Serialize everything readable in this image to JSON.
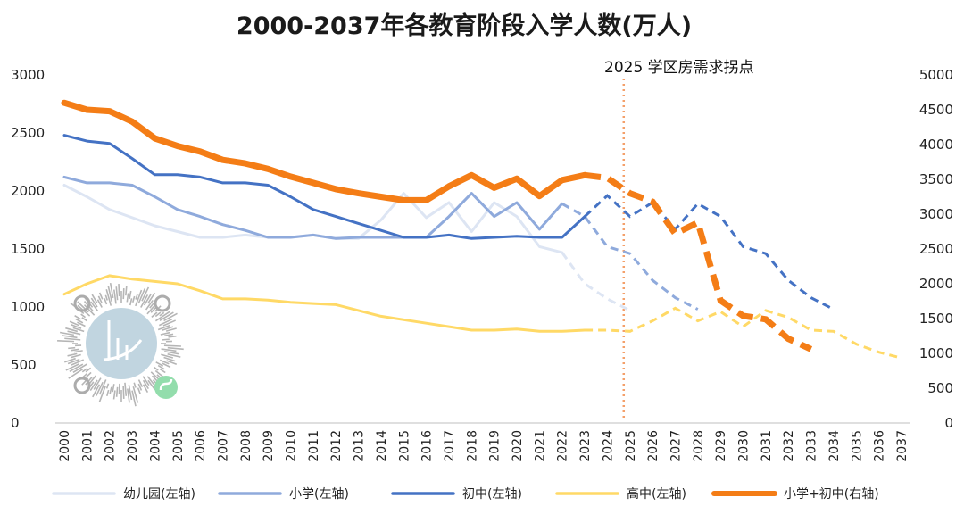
{
  "chart_data": {
    "type": "line",
    "title": "2000-2037年各教育阶段入学人数(万人)",
    "annotation": "2025 学区房需求拐点",
    "annotation_x": "2025",
    "categories": [
      "2000",
      "2001",
      "2002",
      "2003",
      "2004",
      "2005",
      "2006",
      "2007",
      "2008",
      "2009",
      "2010",
      "2011",
      "2012",
      "2013",
      "2014",
      "2015",
      "2016",
      "2017",
      "2018",
      "2019",
      "2020",
      "2021",
      "2022",
      "2023",
      "2024",
      "2025",
      "2026",
      "2027",
      "2028",
      "2029",
      "2030",
      "2031",
      "2032",
      "2033",
      "2034",
      "2035",
      "2036",
      "2037"
    ],
    "y_left": {
      "min": 0,
      "max": 3000,
      "ticks": [
        "0",
        "500",
        "1000",
        "1500",
        "2000",
        "2500",
        "3000"
      ]
    },
    "y_right": {
      "min": 0,
      "max": 5000,
      "ticks": [
        "0",
        "500",
        "1000",
        "1500",
        "2000",
        "2500",
        "3000",
        "3500",
        "4000",
        "4500",
        "5000"
      ]
    },
    "series": [
      {
        "name": "幼儿园(左轴)",
        "axis": "left",
        "color": "#dde5f3",
        "width": 3,
        "values": [
          2050,
          1950,
          1840,
          1770,
          1700,
          1650,
          1600,
          1600,
          1620,
          1600,
          1600,
          1620,
          1590,
          1590,
          1750,
          1980,
          1770,
          1900,
          1650,
          1900,
          1780,
          1520,
          1470,
          1200,
          1070,
          970,
          null,
          null,
          null,
          null,
          null,
          null,
          null,
          null,
          null,
          null,
          null,
          null
        ],
        "forecast_from": "2022"
      },
      {
        "name": "小学(左轴)",
        "axis": "left",
        "color": "#8faadc",
        "width": 3,
        "values": [
          2120,
          2070,
          2070,
          2050,
          1950,
          1840,
          1780,
          1710,
          1660,
          1600,
          1600,
          1620,
          1590,
          1600,
          1600,
          1600,
          1600,
          1780,
          1980,
          1780,
          1900,
          1670,
          1890,
          1780,
          1520,
          1460,
          1230,
          1080,
          980,
          null,
          null,
          null,
          null,
          null,
          null,
          null,
          null,
          null
        ],
        "forecast_from": "2022"
      },
      {
        "name": "初中(左轴)",
        "axis": "left",
        "color": "#4472c4",
        "width": 3,
        "values": [
          2480,
          2430,
          2410,
          2280,
          2140,
          2140,
          2120,
          2070,
          2070,
          2050,
          1950,
          1840,
          1780,
          1720,
          1660,
          1600,
          1600,
          1620,
          1590,
          1600,
          1610,
          1600,
          1600,
          1780,
          1960,
          1780,
          1900,
          1670,
          1890,
          1780,
          1520,
          1460,
          1230,
          1080,
          980,
          null,
          null,
          null
        ],
        "forecast_from": "2023"
      },
      {
        "name": "高中(左轴)",
        "axis": "left",
        "color": "#ffd966",
        "width": 3,
        "values": [
          1110,
          1200,
          1270,
          1240,
          1220,
          1200,
          1140,
          1070,
          1070,
          1060,
          1040,
          1030,
          1020,
          970,
          920,
          890,
          860,
          830,
          800,
          800,
          810,
          790,
          790,
          800,
          800,
          790,
          880,
          990,
          880,
          960,
          830,
          970,
          910,
          800,
          790,
          680,
          610,
          560
        ],
        "forecast_from": "2023"
      },
      {
        "name": "小学+初中(右轴)",
        "axis": "right",
        "color": "#f47d16",
        "width": 7,
        "values": [
          4600,
          4500,
          4480,
          4330,
          4090,
          3980,
          3900,
          3780,
          3730,
          3650,
          3540,
          3450,
          3360,
          3300,
          3250,
          3200,
          3200,
          3400,
          3560,
          3380,
          3510,
          3260,
          3490,
          3560,
          3520,
          3300,
          3180,
          2720,
          2880,
          1760,
          1540,
          1490,
          1210,
          1060,
          null,
          null,
          null,
          null
        ],
        "forecast_from": "2023"
      }
    ],
    "legend_position": "bottom",
    "grid": false
  }
}
